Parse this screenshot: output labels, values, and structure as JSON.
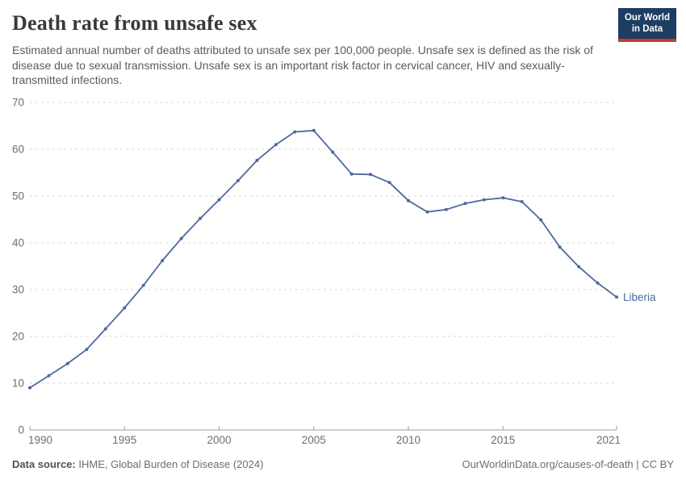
{
  "header": {
    "title": "Death rate from unsafe sex",
    "subtitle": "Estimated annual number of deaths attributed to unsafe sex per 100,000 people. Unsafe sex is defined as the risk of disease due to sexual transmission. Unsafe sex is an important risk factor in cervical cancer, HIV and sexually-transmitted infections.",
    "logo": {
      "line1": "Our World",
      "line2": "in Data"
    }
  },
  "chart_data": {
    "type": "line",
    "title": "Death rate from unsafe sex",
    "unit": "deaths per 100,000 people",
    "x": [
      1990,
      1991,
      1992,
      1993,
      1994,
      1995,
      1996,
      1997,
      1998,
      1999,
      2000,
      2001,
      2002,
      2003,
      2004,
      2005,
      2006,
      2007,
      2008,
      2009,
      2010,
      2011,
      2012,
      2013,
      2014,
      2015,
      2016,
      2017,
      2018,
      2019,
      2020,
      2021
    ],
    "series": [
      {
        "name": "Liberia",
        "color": "#4c6a9c",
        "values": [
          9.0,
          11.6,
          14.2,
          17.2,
          21.6,
          26.1,
          30.9,
          36.2,
          40.9,
          45.2,
          49.2,
          53.3,
          57.6,
          61.0,
          63.7,
          64.0,
          59.4,
          54.7,
          54.6,
          52.9,
          49.0,
          46.6,
          47.1,
          48.4,
          49.2,
          49.6,
          48.8,
          44.9,
          39.1,
          34.9,
          31.4,
          28.4
        ]
      }
    ],
    "xticks": [
      1990,
      1995,
      2000,
      2005,
      2010,
      2015,
      2021
    ],
    "yticks": [
      0,
      10,
      20,
      30,
      40,
      50,
      60,
      70
    ],
    "xlim": [
      1990,
      2021
    ],
    "ylim": [
      0,
      70
    ],
    "grid": "horizontal-dashed",
    "legend_position": "end-of-line",
    "end_label": "Liberia"
  },
  "footer": {
    "source_label": "Data source:",
    "source_value": "IHME, Global Burden of Disease (2024)",
    "rights": "OurWorldinData.org/causes-of-death | CC BY"
  },
  "colors": {
    "series": "#4c6a9c",
    "logo_bg": "#1d3d63",
    "logo_accent": "#bf3b36",
    "grid": "#dadada",
    "axis": "#9e9e9e",
    "tick_text": "#6e6e6e",
    "title_text": "#393939",
    "subtitle_text": "#5b5b5b"
  }
}
